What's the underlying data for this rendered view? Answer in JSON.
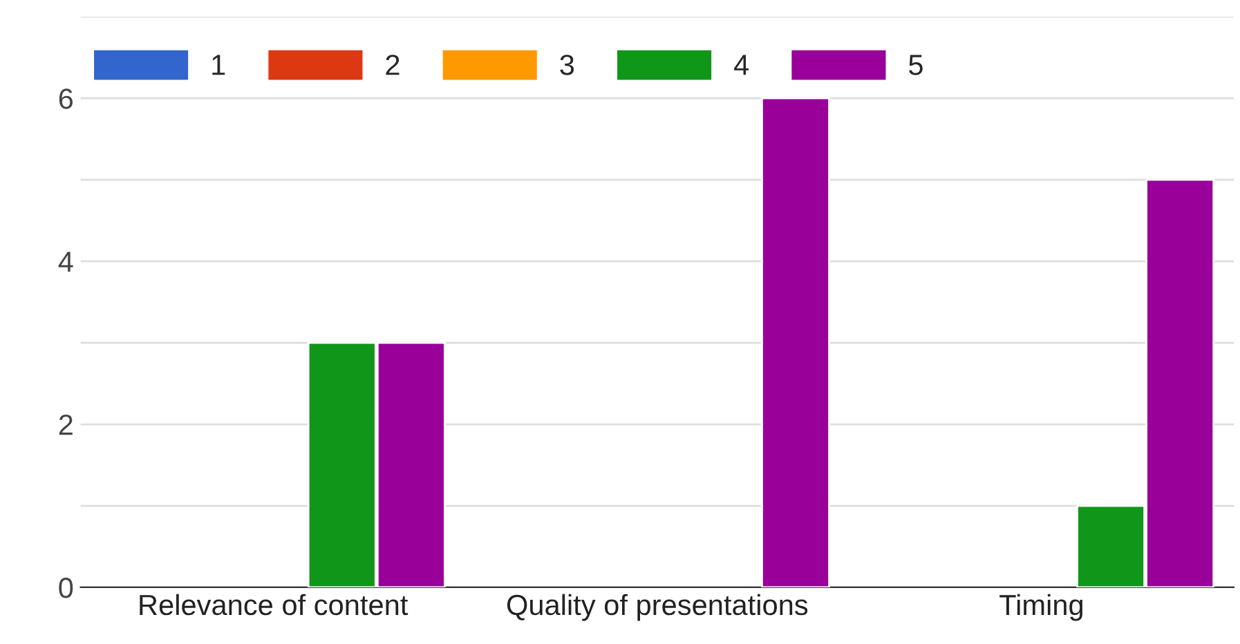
{
  "chart_data": {
    "type": "bar",
    "categories": [
      "Relevance of content",
      "Quality of presentations",
      "Timing"
    ],
    "series": [
      {
        "name": "1",
        "color": "#3366cc",
        "values": [
          null,
          null,
          null
        ]
      },
      {
        "name": "2",
        "color": "#dc3912",
        "values": [
          null,
          null,
          null
        ]
      },
      {
        "name": "3",
        "color": "#ff9900",
        "values": [
          null,
          null,
          null
        ]
      },
      {
        "name": "4",
        "color": "#109618",
        "values": [
          3,
          null,
          1
        ]
      },
      {
        "name": "5",
        "color": "#990099",
        "values": [
          3,
          6,
          5
        ]
      }
    ],
    "ylim": [
      0,
      7
    ],
    "yticks": [
      0,
      {
        "value": 1,
        "label": null
      },
      2,
      {
        "value": 3,
        "label": null
      },
      4,
      {
        "value": 5,
        "label": null
      },
      6,
      {
        "value": 7,
        "label": null
      }
    ],
    "grid": "y",
    "legend": "top left"
  }
}
